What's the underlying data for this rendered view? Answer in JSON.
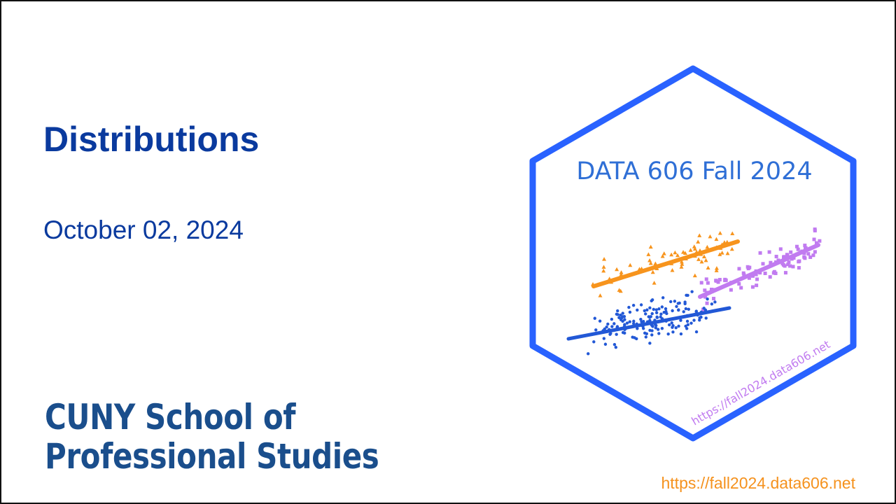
{
  "slide": {
    "title": "Distributions",
    "date": "October 02, 2024",
    "footer_url": "https://fall2024.data606.net"
  },
  "institution": {
    "line1": "CUNY School of",
    "line2": "Professional Studies"
  },
  "logo": {
    "title": "DATA 606 Fall 2024",
    "url": "https://fall2024.data606.net",
    "colors": {
      "border": "#2962ff",
      "title": "#2f6fd6",
      "orange": "#f7941d",
      "purple": "#c17bf0",
      "blue": "#2258d6"
    }
  },
  "colors": {
    "title": "#0a3a9e",
    "school": "#1a4e8c",
    "footer": "#f5921e"
  }
}
